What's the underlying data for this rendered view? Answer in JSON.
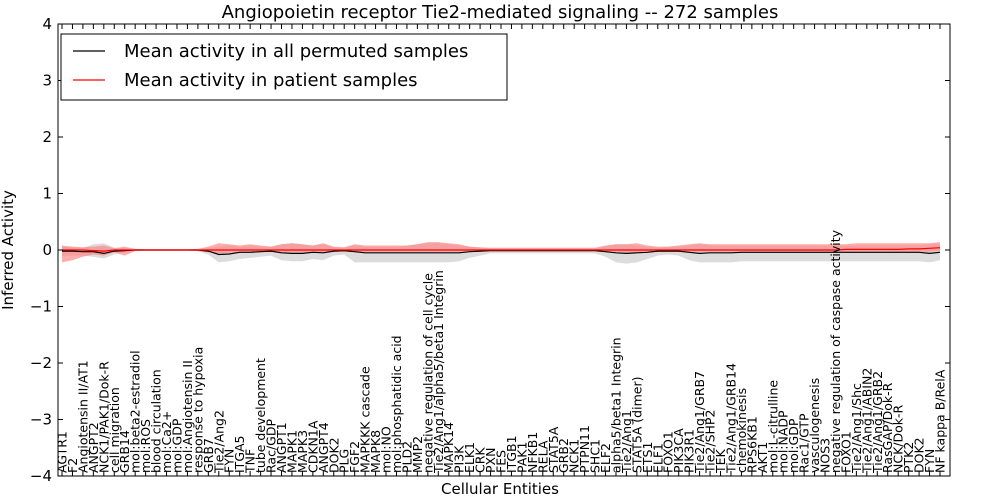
{
  "chart_data": {
    "type": "line",
    "title": "Angiopoietin receptor Tie2-mediated signaling -- 272 samples",
    "xlabel": "Cellular Entities",
    "ylabel": "Inferred Activity",
    "ylim": [
      -4,
      4
    ],
    "yticks": [
      4,
      3,
      2,
      1,
      0,
      -1,
      -2,
      -3,
      -4
    ],
    "ytick_labels": [
      "4",
      "3",
      "2",
      "1",
      "0",
      "−1",
      "−2",
      "−3",
      "−4"
    ],
    "legend": {
      "placement": "top-left",
      "entries": [
        {
          "label": "Mean activity in all permuted samples",
          "color": "#000000"
        },
        {
          "label": "Mean activity in patient samples",
          "color": "#ff0000"
        }
      ]
    },
    "categories": [
      "AGTR1",
      "F2",
      "Angiotensin II/AT1",
      "ANGPT2",
      "NCK1/PAK1/Dok-R",
      "cell migration",
      "GRB14",
      "mol:beta2-estradiol",
      "mol:ROS",
      "blood circulation",
      "mol:Ca2+",
      "mol:GDP",
      "mol:Angiotensin II",
      "response to hypoxia",
      "GRB7",
      "Tie2/Ang2",
      "FYN",
      "ITGA5",
      "TNF",
      "tube development",
      "Rac/GDP",
      "ANGPT1",
      "MAPK1",
      "MAPK3",
      "CDKN1A",
      "ANGPT4",
      "DOK2",
      "PLG",
      "FGF2",
      "MAPKKK cascade",
      "MAPK8",
      "mol:NO",
      "mol:phosphatidic acid",
      "PLD2",
      "MMP2",
      "negative regulation of cell cycle",
      "Tie2/Ang1/alpha5/beta1 Integrin",
      "MAPK14",
      "PI3K",
      "ELK1",
      "CRK",
      "PXN",
      "FES",
      "ITGB1",
      "PAK1",
      "NFKB1",
      "RELA",
      "STAT5A",
      "GRB2",
      "NCK1",
      "PTPN11",
      "SHC1",
      "ELF2",
      "alpha5/beta1 Integrin",
      "Tie2/Ang1",
      "STAT5A (dimer)",
      "ETS1",
      "ELF1",
      "FOXO1",
      "PIK3CA",
      "PIK3R1",
      "Tie2/Ang1/GRB7",
      "Tie2/SHP2",
      "TEK",
      "Tie2/Ang1/GRB14",
      "chemokinesis",
      "RPS6KB1",
      "AKT1",
      "mol:L-citrulline",
      "mol:NADP",
      "mol:GDP",
      "Rac1/GTP",
      "vasculogenesis",
      "NOS3",
      "negative regulation of caspase activity",
      "FOXO1",
      "Tie2/Ang1/Shc",
      "Tie2/Ang1/ABIN2",
      "Tie2/Ang1/GRB2",
      "RasGAP/Dok-R",
      "NCK/Dok-R",
      "PTK2",
      "DOK2",
      "FYN",
      "NF kappa B/RelA"
    ],
    "series": [
      {
        "name": "Mean activity in all permuted samples",
        "color": "#000000",
        "values": [
          -0.02,
          -0.02,
          -0.03,
          -0.03,
          -0.06,
          -0.02,
          -0.01,
          0.0,
          0.0,
          0.0,
          0.0,
          0.0,
          0.0,
          0.0,
          -0.02,
          -0.08,
          -0.07,
          -0.04,
          -0.04,
          -0.03,
          -0.02,
          -0.05,
          -0.06,
          -0.06,
          -0.04,
          -0.05,
          -0.02,
          -0.01,
          -0.03,
          -0.05,
          -0.05,
          -0.05,
          -0.05,
          -0.05,
          -0.05,
          -0.05,
          -0.05,
          -0.05,
          -0.05,
          -0.03,
          -0.02,
          -0.01,
          -0.01,
          -0.01,
          -0.01,
          -0.01,
          -0.01,
          -0.01,
          -0.01,
          -0.01,
          -0.01,
          -0.01,
          -0.03,
          -0.05,
          -0.06,
          -0.05,
          -0.04,
          -0.02,
          -0.02,
          -0.02,
          -0.04,
          -0.06,
          -0.05,
          -0.05,
          -0.05,
          -0.04,
          -0.04,
          -0.04,
          -0.04,
          -0.04,
          -0.04,
          -0.04,
          -0.04,
          -0.04,
          -0.04,
          -0.04,
          -0.04,
          -0.04,
          -0.04,
          -0.04,
          -0.04,
          -0.04,
          -0.04,
          -0.06,
          -0.04
        ]
      },
      {
        "name": "Mean activity in patient samples",
        "color": "#ff0000",
        "values": [
          0.0,
          0.0,
          0.0,
          -0.01,
          -0.02,
          0.0,
          0.0,
          0.0,
          0.0,
          0.0,
          0.0,
          0.0,
          0.0,
          0.0,
          0.0,
          0.0,
          0.0,
          0.0,
          0.0,
          0.0,
          0.0,
          0.0,
          0.0,
          0.0,
          0.0,
          0.0,
          0.0,
          0.0,
          0.0,
          0.0,
          0.0,
          0.0,
          0.0,
          0.0,
          0.0,
          0.0,
          0.0,
          0.0,
          0.0,
          0.0,
          0.0,
          0.0,
          0.0,
          0.0,
          0.0,
          0.0,
          0.0,
          0.0,
          0.0,
          0.0,
          0.0,
          0.0,
          0.0,
          0.0,
          0.0,
          0.0,
          0.0,
          0.0,
          0.0,
          0.0,
          0.0,
          0.0,
          0.0,
          0.0,
          0.0,
          0.0,
          0.0,
          0.0,
          0.0,
          0.0,
          0.0,
          0.0,
          0.0,
          0.0,
          0.0,
          0.01,
          0.01,
          0.01,
          0.01,
          0.01,
          0.01,
          0.02,
          0.02,
          0.03,
          0.04
        ]
      }
    ],
    "bands": [
      {
        "name": "permuted range",
        "color": "#d0d0d0",
        "lower": [
          -0.1,
          -0.1,
          -0.1,
          -0.12,
          -0.15,
          -0.08,
          -0.04,
          -0.02,
          -0.01,
          -0.01,
          -0.01,
          -0.01,
          -0.01,
          -0.02,
          -0.08,
          -0.22,
          -0.2,
          -0.16,
          -0.14,
          -0.12,
          -0.1,
          -0.18,
          -0.2,
          -0.2,
          -0.16,
          -0.18,
          -0.1,
          -0.08,
          -0.22,
          -0.22,
          -0.22,
          -0.22,
          -0.22,
          -0.22,
          -0.22,
          -0.22,
          -0.22,
          -0.22,
          -0.2,
          -0.14,
          -0.1,
          -0.06,
          -0.06,
          -0.06,
          -0.06,
          -0.06,
          -0.06,
          -0.06,
          -0.06,
          -0.06,
          -0.06,
          -0.06,
          -0.12,
          -0.22,
          -0.24,
          -0.22,
          -0.16,
          -0.1,
          -0.08,
          -0.1,
          -0.18,
          -0.22,
          -0.22,
          -0.22,
          -0.22,
          -0.2,
          -0.2,
          -0.2,
          -0.2,
          -0.2,
          -0.2,
          -0.2,
          -0.2,
          -0.2,
          -0.2,
          -0.2,
          -0.2,
          -0.2,
          -0.2,
          -0.2,
          -0.2,
          -0.2,
          -0.2,
          -0.22,
          -0.18
        ],
        "upper": [
          0.06,
          0.05,
          0.04,
          0.1,
          0.12,
          0.04,
          0.04,
          0.02,
          0.01,
          0.01,
          0.01,
          0.01,
          0.01,
          0.02,
          0.04,
          0.06,
          0.08,
          0.06,
          0.08,
          0.06,
          0.06,
          0.1,
          0.12,
          0.1,
          0.08,
          0.1,
          0.05,
          0.04,
          0.08,
          0.06,
          0.06,
          0.06,
          0.06,
          0.08,
          0.1,
          0.12,
          0.12,
          0.1,
          0.08,
          0.06,
          0.04,
          0.03,
          0.03,
          0.03,
          0.03,
          0.03,
          0.03,
          0.03,
          0.03,
          0.03,
          0.03,
          0.03,
          0.06,
          0.1,
          0.1,
          0.08,
          0.06,
          0.04,
          0.06,
          0.06,
          0.08,
          0.1,
          0.08,
          0.08,
          0.08,
          0.08,
          0.08,
          0.08,
          0.08,
          0.08,
          0.08,
          0.08,
          0.08,
          0.08,
          0.08,
          0.08,
          0.08,
          0.08,
          0.08,
          0.08,
          0.08,
          0.08,
          0.08,
          0.1,
          0.1
        ]
      },
      {
        "name": "patient range",
        "color": "#ff8080",
        "lower": [
          -0.22,
          -0.18,
          -0.12,
          -0.08,
          -0.1,
          -0.04,
          -0.1,
          -0.02,
          -0.01,
          -0.01,
          -0.01,
          -0.01,
          -0.01,
          -0.02,
          -0.04,
          -0.06,
          -0.05,
          -0.04,
          -0.03,
          -0.03,
          -0.03,
          -0.04,
          -0.04,
          -0.04,
          -0.04,
          -0.04,
          -0.03,
          -0.03,
          -0.04,
          -0.03,
          -0.03,
          -0.03,
          -0.03,
          -0.03,
          -0.03,
          -0.03,
          -0.03,
          -0.03,
          -0.03,
          -0.02,
          -0.02,
          -0.02,
          -0.02,
          -0.02,
          -0.02,
          -0.02,
          -0.02,
          -0.02,
          -0.02,
          -0.02,
          -0.02,
          -0.02,
          -0.03,
          -0.03,
          -0.04,
          -0.04,
          -0.03,
          -0.03,
          -0.03,
          -0.03,
          -0.03,
          -0.03,
          -0.03,
          -0.03,
          -0.03,
          -0.03,
          -0.03,
          -0.03,
          -0.03,
          -0.03,
          -0.03,
          -0.03,
          -0.03,
          -0.03,
          -0.03,
          -0.03,
          -0.03,
          -0.03,
          -0.03,
          -0.03,
          -0.03,
          -0.03,
          -0.03,
          -0.03,
          -0.02
        ],
        "upper": [
          0.08,
          0.06,
          0.05,
          0.06,
          0.08,
          0.03,
          0.06,
          0.02,
          0.01,
          0.01,
          0.01,
          0.01,
          0.01,
          0.02,
          0.06,
          0.12,
          0.1,
          0.08,
          0.1,
          0.08,
          0.06,
          0.1,
          0.12,
          0.1,
          0.08,
          0.12,
          0.06,
          0.05,
          0.1,
          0.08,
          0.08,
          0.08,
          0.08,
          0.08,
          0.1,
          0.14,
          0.14,
          0.12,
          0.1,
          0.06,
          0.05,
          0.04,
          0.04,
          0.04,
          0.04,
          0.04,
          0.04,
          0.04,
          0.04,
          0.04,
          0.04,
          0.04,
          0.08,
          0.1,
          0.1,
          0.12,
          0.08,
          0.06,
          0.06,
          0.08,
          0.1,
          0.12,
          0.1,
          0.1,
          0.1,
          0.1,
          0.1,
          0.1,
          0.1,
          0.1,
          0.1,
          0.1,
          0.1,
          0.1,
          0.1,
          0.1,
          0.12,
          0.12,
          0.12,
          0.12,
          0.12,
          0.12,
          0.12,
          0.12,
          0.14
        ]
      }
    ],
    "grid": false
  }
}
